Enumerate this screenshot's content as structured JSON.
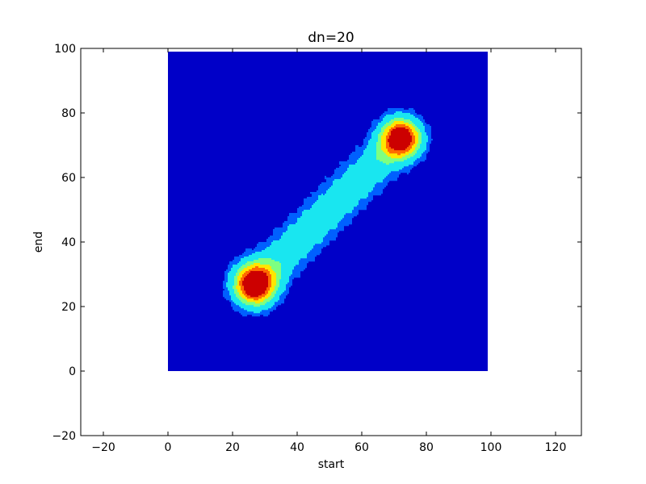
{
  "chart_data": {
    "type": "contour",
    "title": "dn=20",
    "xlabel": "start",
    "ylabel": "end",
    "xlim": [
      -27,
      128
    ],
    "ylim": [
      -20,
      100
    ],
    "xticks": [
      -20,
      0,
      20,
      40,
      60,
      80,
      100,
      120
    ],
    "yticks": [
      -20,
      0,
      20,
      40,
      60,
      80,
      100
    ],
    "data_extent": {
      "x": [
        0,
        99
      ],
      "y": [
        0,
        99
      ]
    },
    "background_level_color": "#0000c8",
    "levels": [
      {
        "name": "level-1",
        "color": "#0060ff"
      },
      {
        "name": "level-2",
        "color": "#19e6f0"
      },
      {
        "name": "level-3",
        "color": "#7dff82"
      },
      {
        "name": "level-4",
        "color": "#ffe600"
      },
      {
        "name": "level-5",
        "color": "#ff6a00"
      },
      {
        "name": "level-6",
        "color": "#cc0000"
      }
    ],
    "features": [
      {
        "name": "lower-peak",
        "center": [
          27,
          27
        ]
      },
      {
        "name": "upper-peak",
        "center": [
          72,
          72
        ]
      },
      {
        "name": "diagonal-ridge",
        "from": [
          27,
          27
        ],
        "to": [
          72,
          72
        ]
      }
    ],
    "grid": false,
    "legend": "none"
  }
}
